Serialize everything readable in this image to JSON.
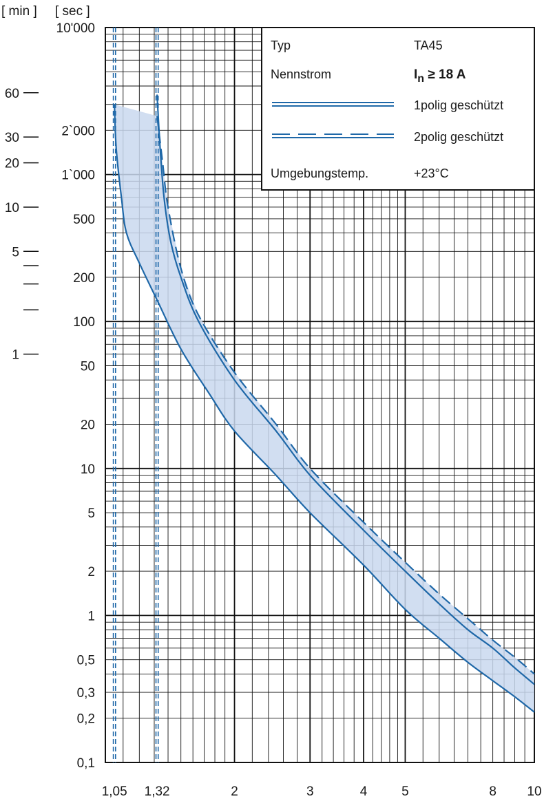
{
  "chart_data": {
    "type": "line",
    "title": "",
    "units": {
      "min": "[ min ]",
      "sec": "[ sec ]"
    },
    "x_axis": {
      "scale": "log",
      "range": [
        1,
        10
      ],
      "ticks": [
        {
          "value": 1.05,
          "label": "1,05"
        },
        {
          "value": 1.32,
          "label": "1,32"
        },
        {
          "value": 2,
          "label": "2"
        },
        {
          "value": 3,
          "label": "3"
        },
        {
          "value": 4,
          "label": "4"
        },
        {
          "value": 5,
          "label": "5"
        },
        {
          "value": 8,
          "label": "8"
        },
        {
          "value": 10,
          "label": "10"
        }
      ]
    },
    "y_axis": {
      "scale": "log",
      "range": [
        0.1,
        10000
      ],
      "sec_ticks": [
        {
          "value": 10000,
          "label": "10'000"
        },
        {
          "value": 2000,
          "label": "2`000"
        },
        {
          "value": 1000,
          "label": "1`000"
        },
        {
          "value": 500,
          "label": "500"
        },
        {
          "value": 200,
          "label": "200"
        },
        {
          "value": 100,
          "label": "100"
        },
        {
          "value": 50,
          "label": "50"
        },
        {
          "value": 20,
          "label": "20"
        },
        {
          "value": 10,
          "label": "10"
        },
        {
          "value": 5,
          "label": "5"
        },
        {
          "value": 2,
          "label": "2"
        },
        {
          "value": 1,
          "label": "1"
        },
        {
          "value": 0.5,
          "label": "0,5"
        },
        {
          "value": 0.3,
          "label": "0,3"
        },
        {
          "value": 0.2,
          "label": "0,2"
        },
        {
          "value": 0.1,
          "label": "0,1"
        }
      ],
      "min_ticks": [
        {
          "seconds": 3600,
          "label": "60"
        },
        {
          "seconds": 1800,
          "label": "30"
        },
        {
          "seconds": 1200,
          "label": "20"
        },
        {
          "seconds": 600,
          "label": "10"
        },
        {
          "seconds": 300,
          "label": "5"
        },
        {
          "seconds": 240,
          "label": ""
        },
        {
          "seconds": 180,
          "label": ""
        },
        {
          "seconds": 120,
          "label": ""
        },
        {
          "seconds": 60,
          "label": "1"
        }
      ]
    },
    "vertical_markers": [
      1.05,
      1.32
    ],
    "series": [
      {
        "name": "1polig geschützt lower",
        "style": "solid-double",
        "x": [
          1.05,
          1.06,
          1.09,
          1.12,
          1.2,
          1.32,
          1.5,
          1.75,
          2,
          2.5,
          3,
          4,
          5,
          6,
          7,
          8,
          9,
          10
        ],
        "y": [
          3000,
          1500,
          700,
          400,
          250,
          140,
          65,
          32,
          18,
          9,
          5,
          2.2,
          1.1,
          0.7,
          0.48,
          0.36,
          0.28,
          0.22
        ]
      },
      {
        "name": "1polig geschützt upper",
        "style": "solid-double",
        "x": [
          1.32,
          1.34,
          1.37,
          1.42,
          1.5,
          1.65,
          2,
          2.5,
          3,
          4,
          5,
          6,
          7,
          8,
          9,
          10
        ],
        "y": [
          3500,
          1600,
          700,
          350,
          200,
          100,
          40,
          18,
          9,
          3.8,
          2,
          1.2,
          0.8,
          0.6,
          0.44,
          0.34
        ]
      },
      {
        "name": "2polig geschützt upper",
        "style": "dashed",
        "x": [
          1.32,
          1.36,
          1.4,
          1.5,
          1.65,
          2,
          2.5,
          3,
          4,
          5,
          6,
          7,
          8,
          9,
          10
        ],
        "y": [
          2500,
          1200,
          600,
          230,
          110,
          45,
          20,
          10,
          4.3,
          2.3,
          1.4,
          0.95,
          0.68,
          0.52,
          0.4
        ]
      }
    ],
    "legend": {
      "placement": "top-right",
      "rows": [
        {
          "label": "Typ",
          "value": "TA45"
        },
        {
          "label": "Nennstrom",
          "value": "I",
          "value_sub": "n",
          "value_tail": " ≥ 18 A"
        },
        {
          "label": "",
          "value": "1polig geschützt",
          "line": "solid-double"
        },
        {
          "label": "",
          "value": "2polig geschützt",
          "line": "dashed-double"
        },
        {
          "label": "Umgebungstemp.",
          "value": "+23°C"
        }
      ]
    },
    "colors": {
      "curve": "#1f68a8",
      "band": "#c9d8ef",
      "grid": "#111111"
    }
  }
}
